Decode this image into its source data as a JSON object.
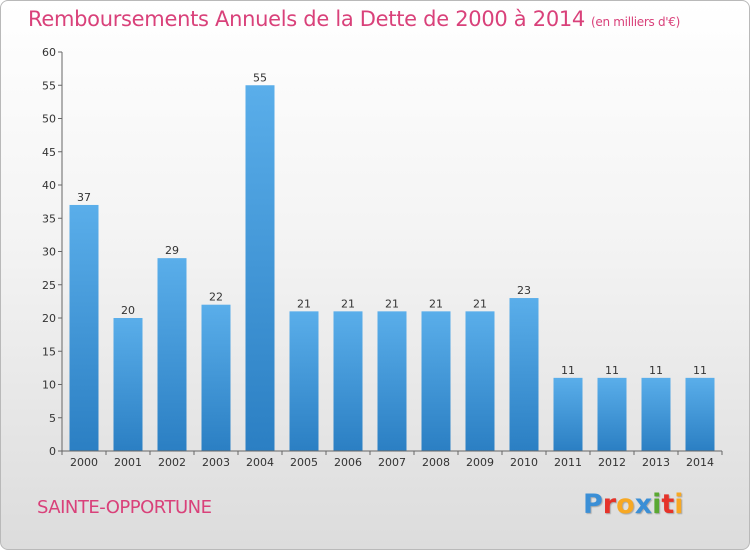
{
  "header": {
    "title": "Remboursements Annuels de la Dette de 2000 à 2014",
    "subtitle": "(en milliers d'€)"
  },
  "footer": {
    "commune": "SAINTE-OPPORTUNE",
    "logo_letters": [
      "P",
      "r",
      "o",
      "x",
      "i",
      "t",
      "i"
    ],
    "logo_colors": [
      "#3b8fd6",
      "#e5332a",
      "#f7a823",
      "#3b8fd6",
      "#5aa832",
      "#e5332a",
      "#f7a823"
    ]
  },
  "chart_data": {
    "type": "bar",
    "categories": [
      "2000",
      "2001",
      "2002",
      "2003",
      "2004",
      "2005",
      "2006",
      "2007",
      "2008",
      "2009",
      "2010",
      "2011",
      "2012",
      "2013",
      "2014"
    ],
    "values": [
      37,
      20,
      29,
      22,
      55,
      21,
      21,
      21,
      21,
      21,
      23,
      11,
      11,
      11,
      11
    ],
    "data_labels": [
      "37",
      "20",
      "29",
      "22",
      "55",
      "21",
      "21",
      "21",
      "21",
      "21",
      "23",
      "11",
      "11",
      "11",
      "11"
    ],
    "ylim": [
      0,
      60
    ],
    "yticks": [
      "0",
      "5",
      "10",
      "15",
      "20",
      "25",
      "30",
      "35",
      "40",
      "45",
      "50",
      "55",
      "60"
    ],
    "grid": false,
    "bar_color": "#4d9de0",
    "label_color": "#333333"
  }
}
